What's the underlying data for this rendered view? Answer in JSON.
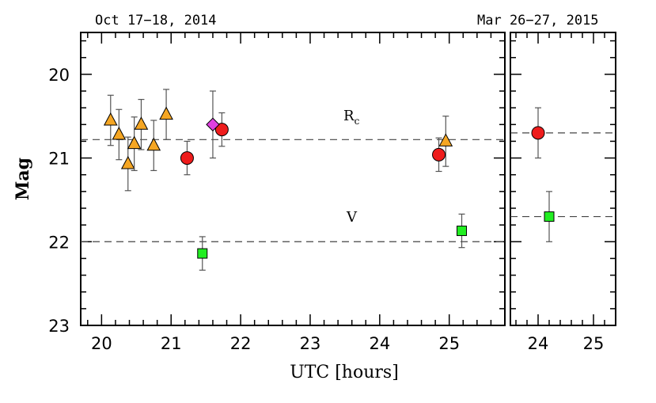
{
  "chart_data": [
    {
      "type": "scatter",
      "panel": "left",
      "date_label": "Oct 17−18, 2014",
      "xlabel": "UTC [hours]",
      "ylabel": "Mag",
      "xlim": [
        19.7,
        25.8
      ],
      "ylim": [
        23,
        19.5
      ],
      "y_inverted": true,
      "x_ticks": [
        "20",
        "21",
        "22",
        "23",
        "24",
        "25"
      ],
      "y_ticks": [
        "20",
        "21",
        "22",
        "23"
      ],
      "reference_lines": [
        {
          "band": "Rc",
          "y": 20.78
        },
        {
          "band": "V",
          "y": 22.0
        }
      ],
      "annotations": [
        {
          "text": "R",
          "subscript": "c",
          "x": 23.6,
          "y": 20.5
        },
        {
          "text": "V",
          "x": 23.6,
          "y": 21.7
        }
      ],
      "series": [
        {
          "marker": "triangle",
          "color": "#f5a623",
          "points": [
            {
              "x": 20.13,
              "y": 20.55,
              "err": 0.3
            },
            {
              "x": 20.25,
              "y": 20.72,
              "err": 0.3
            },
            {
              "x": 20.38,
              "y": 21.07,
              "err": 0.32
            },
            {
              "x": 20.47,
              "y": 20.83,
              "err": 0.32
            },
            {
              "x": 20.57,
              "y": 20.6,
              "err": 0.3
            },
            {
              "x": 20.75,
              "y": 20.85,
              "err": 0.3
            },
            {
              "x": 20.93,
              "y": 20.48,
              "err": 0.3
            },
            {
              "x": 24.95,
              "y": 20.8,
              "err": 0.3
            }
          ]
        },
        {
          "marker": "circle",
          "color": "#ee1c1c",
          "points": [
            {
              "x": 21.23,
              "y": 21.0,
              "err": 0.2
            },
            {
              "x": 21.73,
              "y": 20.66,
              "err": 0.2
            },
            {
              "x": 24.85,
              "y": 20.96,
              "err": 0.2
            }
          ]
        },
        {
          "marker": "diamond",
          "color": "#e040e0",
          "points": [
            {
              "x": 21.6,
              "y": 20.6,
              "err": 0.4
            }
          ]
        },
        {
          "marker": "square",
          "color": "#22ee22",
          "points": [
            {
              "x": 21.45,
              "y": 22.14,
              "err": 0.2
            },
            {
              "x": 25.18,
              "y": 21.87,
              "err": 0.2
            }
          ]
        }
      ]
    },
    {
      "type": "scatter",
      "panel": "right",
      "date_label": "Mar 26−27, 2015",
      "xlim": [
        23.5,
        25.4
      ],
      "ylim": [
        23,
        19.5
      ],
      "x_ticks": [
        "24",
        "25"
      ],
      "reference_lines": [
        {
          "band": "Rc",
          "y": 20.7
        },
        {
          "band": "V",
          "y": 21.7
        }
      ],
      "series": [
        {
          "marker": "circle",
          "color": "#ee1c1c",
          "points": [
            {
              "x": 24.0,
              "y": 20.7,
              "err": 0.3
            }
          ]
        },
        {
          "marker": "square",
          "color": "#22ee22",
          "points": [
            {
              "x": 24.2,
              "y": 21.7,
              "err": 0.3
            }
          ]
        }
      ]
    }
  ]
}
